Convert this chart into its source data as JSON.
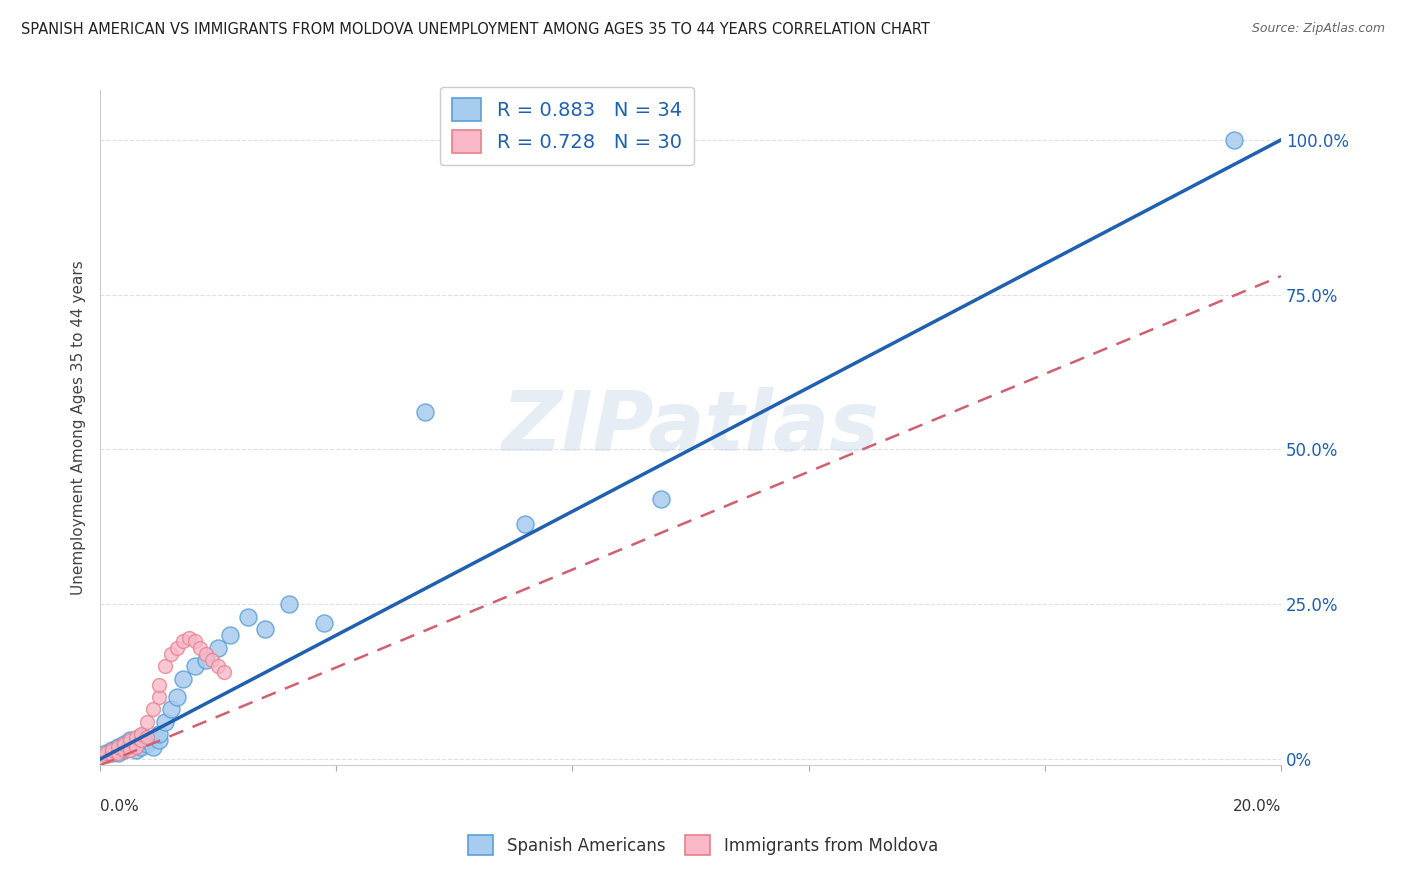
{
  "title": "SPANISH AMERICAN VS IMMIGRANTS FROM MOLDOVA UNEMPLOYMENT AMONG AGES 35 TO 44 YEARS CORRELATION CHART",
  "source": "Source: ZipAtlas.com",
  "ylabel": "Unemployment Among Ages 35 to 44 years",
  "ytick_labels": [
    "0%",
    "25.0%",
    "50.0%",
    "75.0%",
    "100.0%"
  ],
  "ytick_values": [
    0.0,
    0.25,
    0.5,
    0.75,
    1.0
  ],
  "xlim": [
    0.0,
    0.2
  ],
  "ylim": [
    -0.01,
    1.08
  ],
  "blue_R": 0.883,
  "blue_N": 34,
  "pink_R": 0.728,
  "pink_N": 30,
  "blue_scatter_color": "#a8ccee",
  "blue_edge_color": "#5a9fd4",
  "pink_scatter_color": "#f8b8c8",
  "pink_edge_color": "#e8808c",
  "trendline_blue_color": "#2060b0",
  "trendline_pink_color": "#d06070",
  "legend_label_blue": "Spanish Americans",
  "legend_label_pink": "Immigrants from Moldova",
  "watermark": "ZIPatlas",
  "background_color": "#ffffff",
  "grid_color": "#e0e0e0",
  "blue_line_x0": 0.0,
  "blue_line_y0": 0.0,
  "blue_line_x1": 0.2,
  "blue_line_y1": 1.0,
  "pink_line_x0": 0.0,
  "pink_line_y0": -0.01,
  "pink_line_x1": 0.2,
  "pink_line_y1": 0.78,
  "blue_scatter_x": [
    0.001,
    0.002,
    0.002,
    0.003,
    0.003,
    0.004,
    0.004,
    0.005,
    0.005,
    0.006,
    0.006,
    0.007,
    0.007,
    0.008,
    0.008,
    0.009,
    0.01,
    0.01,
    0.011,
    0.012,
    0.013,
    0.014,
    0.016,
    0.018,
    0.02,
    0.022,
    0.025,
    0.028,
    0.032,
    0.038,
    0.055,
    0.072,
    0.095,
    0.192
  ],
  "blue_scatter_y": [
    0.01,
    0.01,
    0.015,
    0.01,
    0.02,
    0.015,
    0.025,
    0.02,
    0.03,
    0.015,
    0.025,
    0.02,
    0.035,
    0.025,
    0.03,
    0.02,
    0.03,
    0.04,
    0.06,
    0.08,
    0.1,
    0.13,
    0.15,
    0.16,
    0.18,
    0.2,
    0.23,
    0.21,
    0.25,
    0.22,
    0.56,
    0.38,
    0.42,
    1.0
  ],
  "pink_scatter_x": [
    0.001,
    0.001,
    0.002,
    0.002,
    0.003,
    0.003,
    0.004,
    0.004,
    0.005,
    0.005,
    0.006,
    0.006,
    0.007,
    0.007,
    0.008,
    0.008,
    0.009,
    0.01,
    0.01,
    0.011,
    0.012,
    0.013,
    0.014,
    0.015,
    0.016,
    0.017,
    0.018,
    0.019,
    0.02,
    0.021
  ],
  "pink_scatter_y": [
    0.005,
    0.01,
    0.008,
    0.015,
    0.01,
    0.02,
    0.015,
    0.025,
    0.015,
    0.03,
    0.02,
    0.035,
    0.03,
    0.04,
    0.035,
    0.06,
    0.08,
    0.1,
    0.12,
    0.15,
    0.17,
    0.18,
    0.19,
    0.195,
    0.19,
    0.18,
    0.17,
    0.16,
    0.15,
    0.14
  ]
}
